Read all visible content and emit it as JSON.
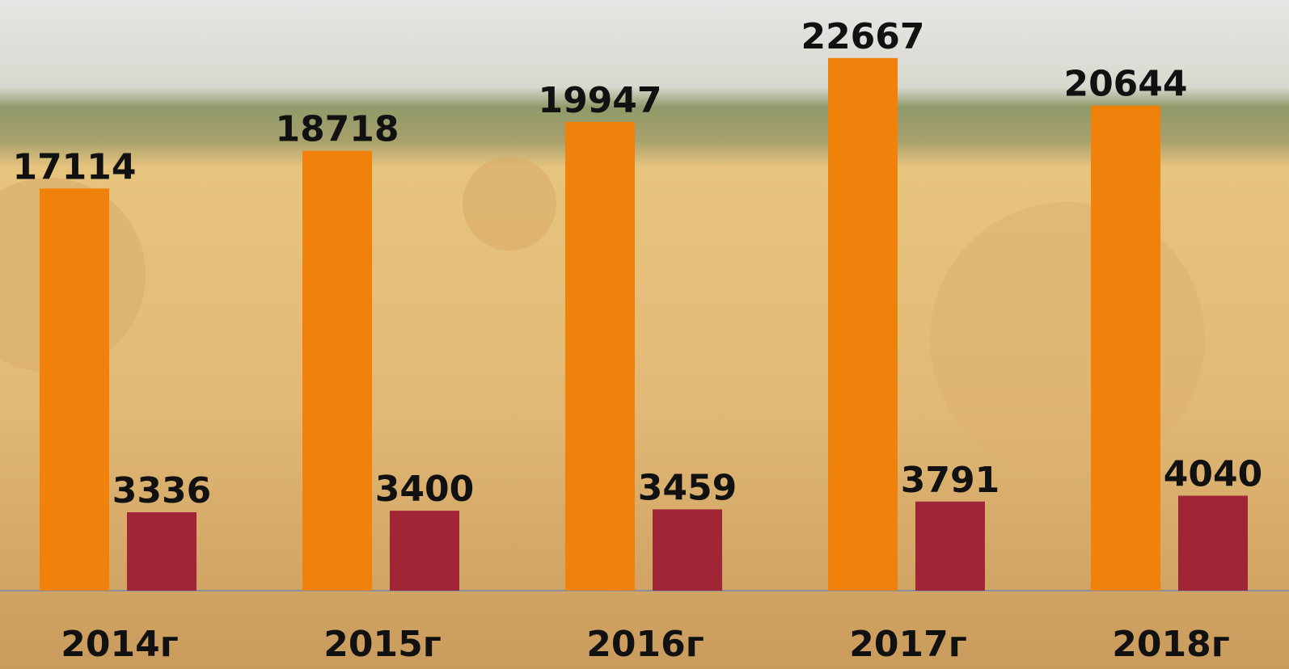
{
  "chart_data": {
    "type": "bar",
    "categories": [
      "2014г",
      "2015г",
      "2016г",
      "2017г",
      "2018г"
    ],
    "series": [
      {
        "color": "#f0820c",
        "values": [
          17114,
          18718,
          19947,
          22667,
          20644
        ]
      },
      {
        "color": "#a02536",
        "values": [
          3336,
          3400,
          3459,
          3791,
          4040
        ]
      }
    ],
    "ylim": [
      0,
      25000
    ]
  }
}
